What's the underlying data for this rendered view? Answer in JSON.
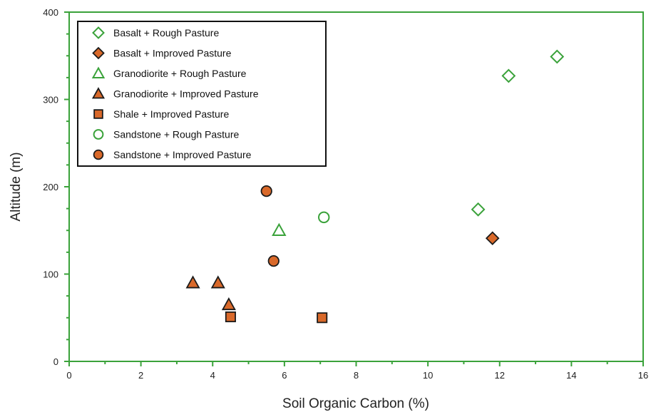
{
  "chart_data": {
    "type": "scatter",
    "xlabel": "Soil Organic Carbon (%)",
    "ylabel": "Altitude (m)",
    "xlim": [
      0,
      16
    ],
    "ylim": [
      0,
      400
    ],
    "xticks": [
      0,
      2,
      4,
      6,
      8,
      10,
      12,
      14,
      16
    ],
    "yticks": [
      0,
      100,
      200,
      300,
      400
    ],
    "grid": false,
    "legend_position": "top-left",
    "colors": {
      "axis": "#3aa23a",
      "green": "#3aa23a",
      "orange": "#d9692a",
      "outline": "#1a1a1a"
    },
    "series": [
      {
        "name": "Basalt + Rough Pasture",
        "marker": "diamond",
        "fill": "none",
        "stroke": "green",
        "points": [
          [
            11.4,
            174
          ],
          [
            12.25,
            327
          ],
          [
            13.6,
            349
          ]
        ]
      },
      {
        "name": "Basalt + Improved Pasture",
        "marker": "diamond",
        "fill": "orange",
        "stroke": "outline",
        "points": [
          [
            11.8,
            141
          ]
        ]
      },
      {
        "name": "Granodiorite + Rough Pasture",
        "marker": "triangle",
        "fill": "none",
        "stroke": "green",
        "points": [
          [
            5.85,
            150
          ]
        ]
      },
      {
        "name": "Granodiorite + Improved Pasture",
        "marker": "triangle",
        "fill": "orange",
        "stroke": "outline",
        "points": [
          [
            3.45,
            90
          ],
          [
            4.15,
            90
          ],
          [
            4.45,
            65
          ]
        ]
      },
      {
        "name": "Shale + Improved Pasture",
        "marker": "square",
        "fill": "orange",
        "stroke": "outline",
        "points": [
          [
            4.5,
            51
          ],
          [
            7.05,
            50
          ]
        ]
      },
      {
        "name": "Sandstone + Rough Pasture",
        "marker": "circle",
        "fill": "none",
        "stroke": "green",
        "points": [
          [
            7.1,
            165
          ]
        ]
      },
      {
        "name": "Sandstone + Improved Pasture",
        "marker": "circle",
        "fill": "orange",
        "stroke": "outline",
        "points": [
          [
            5.5,
            195
          ],
          [
            5.7,
            115
          ]
        ]
      }
    ]
  }
}
